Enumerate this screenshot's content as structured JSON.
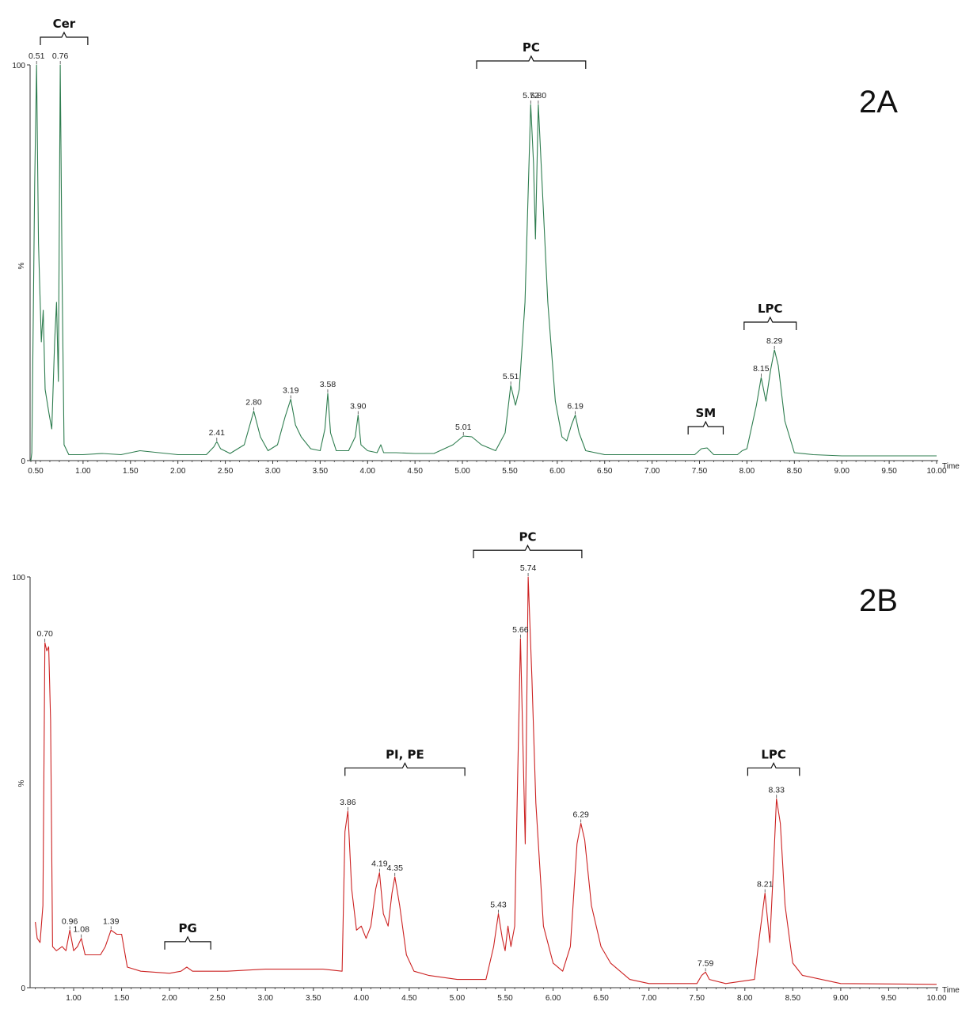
{
  "chart_data": [
    {
      "type": "line",
      "panel_label": "2A",
      "color": "#2e7d4f",
      "xlabel": "Time",
      "ylabel": "%",
      "xlim": [
        0.45,
        10.0
      ],
      "ylim": [
        0,
        100
      ],
      "y_ticks": [
        {
          "v": 0,
          "label": "0"
        },
        {
          "v": 100,
          "label": "100"
        }
      ],
      "x_ticks": [
        "0.50",
        "1.00",
        "1.50",
        "2.00",
        "2.50",
        "3.00",
        "3.50",
        "4.00",
        "4.50",
        "5.00",
        "5.50",
        "6.00",
        "6.50",
        "7.00",
        "7.50",
        "8.00",
        "8.50",
        "9.00",
        "9.50",
        "10.00"
      ],
      "trace": [
        [
          0.45,
          0
        ],
        [
          0.46,
          2
        ],
        [
          0.49,
          70
        ],
        [
          0.51,
          100
        ],
        [
          0.53,
          55
        ],
        [
          0.56,
          30
        ],
        [
          0.58,
          38
        ],
        [
          0.6,
          18
        ],
        [
          0.64,
          12
        ],
        [
          0.67,
          8
        ],
        [
          0.7,
          30
        ],
        [
          0.72,
          40
        ],
        [
          0.74,
          20
        ],
        [
          0.76,
          100
        ],
        [
          0.78,
          45
        ],
        [
          0.8,
          4
        ],
        [
          0.85,
          1.5
        ],
        [
          1.0,
          1.5
        ],
        [
          1.2,
          1.8
        ],
        [
          1.4,
          1.5
        ],
        [
          1.6,
          2.5
        ],
        [
          1.8,
          2
        ],
        [
          2.0,
          1.5
        ],
        [
          2.3,
          1.5
        ],
        [
          2.38,
          3.5
        ],
        [
          2.41,
          4.8
        ],
        [
          2.45,
          3
        ],
        [
          2.55,
          1.8
        ],
        [
          2.7,
          4
        ],
        [
          2.8,
          12.5
        ],
        [
          2.87,
          6
        ],
        [
          2.95,
          2.5
        ],
        [
          3.05,
          4
        ],
        [
          3.13,
          11
        ],
        [
          3.19,
          15.5
        ],
        [
          3.24,
          9
        ],
        [
          3.3,
          6
        ],
        [
          3.4,
          3
        ],
        [
          3.5,
          2.5
        ],
        [
          3.55,
          8
        ],
        [
          3.58,
          17
        ],
        [
          3.61,
          7
        ],
        [
          3.67,
          2.5
        ],
        [
          3.8,
          2.5
        ],
        [
          3.87,
          6
        ],
        [
          3.9,
          11.5
        ],
        [
          3.93,
          4
        ],
        [
          4.0,
          2.5
        ],
        [
          4.1,
          2
        ],
        [
          4.14,
          4
        ],
        [
          4.17,
          2
        ],
        [
          4.3,
          2
        ],
        [
          4.5,
          1.8
        ],
        [
          4.7,
          1.8
        ],
        [
          4.9,
          4
        ],
        [
          5.01,
          6.2
        ],
        [
          5.1,
          6
        ],
        [
          5.2,
          4
        ],
        [
          5.35,
          2.5
        ],
        [
          5.45,
          7
        ],
        [
          5.51,
          19
        ],
        [
          5.56,
          14
        ],
        [
          5.6,
          18
        ],
        [
          5.66,
          40
        ],
        [
          5.72,
          90
        ],
        [
          5.75,
          75
        ],
        [
          5.77,
          56
        ],
        [
          5.8,
          90
        ],
        [
          5.84,
          70
        ],
        [
          5.9,
          40
        ],
        [
          5.98,
          15
        ],
        [
          6.05,
          6
        ],
        [
          6.1,
          5
        ],
        [
          6.15,
          9
        ],
        [
          6.19,
          11.5
        ],
        [
          6.23,
          7
        ],
        [
          6.3,
          2.5
        ],
        [
          6.5,
          1.5
        ],
        [
          7.0,
          1.5
        ],
        [
          7.45,
          1.5
        ],
        [
          7.52,
          3
        ],
        [
          7.58,
          3.2
        ],
        [
          7.65,
          1.5
        ],
        [
          7.9,
          1.5
        ],
        [
          7.95,
          2.5
        ],
        [
          8.0,
          3
        ],
        [
          8.1,
          14
        ],
        [
          8.15,
          21
        ],
        [
          8.2,
          15
        ],
        [
          8.25,
          23
        ],
        [
          8.29,
          28
        ],
        [
          8.33,
          24
        ],
        [
          8.4,
          10
        ],
        [
          8.5,
          2
        ],
        [
          8.7,
          1.5
        ],
        [
          9.0,
          1.2
        ],
        [
          10.0,
          1.2
        ]
      ],
      "peaks": [
        {
          "x": 0.51,
          "y": 100,
          "label": "0.51"
        },
        {
          "x": 0.76,
          "y": 100,
          "label": "0.76"
        },
        {
          "x": 2.41,
          "y": 4.8,
          "label": "2.41"
        },
        {
          "x": 2.8,
          "y": 12.5,
          "label": "2.80"
        },
        {
          "x": 3.19,
          "y": 15.5,
          "label": "3.19"
        },
        {
          "x": 3.58,
          "y": 17,
          "label": "3.58"
        },
        {
          "x": 3.9,
          "y": 11.5,
          "label": "3.90"
        },
        {
          "x": 5.01,
          "y": 6.2,
          "label": "5.01"
        },
        {
          "x": 5.51,
          "y": 19,
          "label": "5.51"
        },
        {
          "x": 5.72,
          "y": 90,
          "label": "5.72"
        },
        {
          "x": 5.8,
          "y": 90,
          "label": "5.80"
        },
        {
          "x": 6.19,
          "y": 11.5,
          "label": "6.19"
        },
        {
          "x": 8.15,
          "y": 21,
          "label": "8.15"
        },
        {
          "x": 8.29,
          "y": 28,
          "label": "8.29"
        }
      ],
      "groups": [
        {
          "label": "Cer",
          "x1": 0.55,
          "x2": 1.05,
          "y": 107
        },
        {
          "label": "PC",
          "x1": 5.15,
          "x2": 6.3,
          "y": 101
        },
        {
          "label": "SM",
          "x1": 7.38,
          "x2": 7.75,
          "y": 8.6
        },
        {
          "label": "LPC",
          "x1": 7.97,
          "x2": 8.52,
          "y": 35
        }
      ]
    },
    {
      "type": "line",
      "panel_label": "2B",
      "color": "#cc2222",
      "xlabel": "Time",
      "ylabel": "%",
      "xlim": [
        0.6,
        10.0
      ],
      "ylim": [
        0,
        100
      ],
      "y_ticks": [
        {
          "v": 0,
          "label": "0"
        },
        {
          "v": 100,
          "label": "100"
        }
      ],
      "x_ticks": [
        "1.00",
        "1.50",
        "2.00",
        "2.50",
        "3.00",
        "3.50",
        "4.00",
        "4.50",
        "5.00",
        "5.50",
        "6.00",
        "6.50",
        "7.00",
        "7.50",
        "8.00",
        "8.50",
        "9.00",
        "9.50",
        "10.00"
      ],
      "trace": [
        [
          0.6,
          16
        ],
        [
          0.62,
          12
        ],
        [
          0.65,
          11
        ],
        [
          0.68,
          20
        ],
        [
          0.7,
          84
        ],
        [
          0.72,
          82
        ],
        [
          0.74,
          83
        ],
        [
          0.76,
          65
        ],
        [
          0.78,
          10
        ],
        [
          0.82,
          9
        ],
        [
          0.88,
          10
        ],
        [
          0.92,
          9
        ],
        [
          0.96,
          14
        ],
        [
          1.0,
          9
        ],
        [
          1.04,
          10
        ],
        [
          1.08,
          12
        ],
        [
          1.12,
          8
        ],
        [
          1.2,
          8
        ],
        [
          1.28,
          8
        ],
        [
          1.33,
          10
        ],
        [
          1.39,
          14
        ],
        [
          1.45,
          13
        ],
        [
          1.5,
          13
        ],
        [
          1.56,
          5
        ],
        [
          1.7,
          4
        ],
        [
          2.0,
          3.5
        ],
        [
          2.12,
          4
        ],
        [
          2.18,
          5
        ],
        [
          2.24,
          4
        ],
        [
          2.4,
          4
        ],
        [
          2.6,
          4
        ],
        [
          3.0,
          4.5
        ],
        [
          3.3,
          4.5
        ],
        [
          3.6,
          4.5
        ],
        [
          3.8,
          4
        ],
        [
          3.83,
          38
        ],
        [
          3.86,
          43
        ],
        [
          3.9,
          24
        ],
        [
          3.95,
          14
        ],
        [
          4.0,
          15
        ],
        [
          4.05,
          12
        ],
        [
          4.1,
          15
        ],
        [
          4.15,
          24
        ],
        [
          4.19,
          28
        ],
        [
          4.23,
          18
        ],
        [
          4.28,
          15
        ],
        [
          4.32,
          23
        ],
        [
          4.35,
          27
        ],
        [
          4.4,
          20
        ],
        [
          4.47,
          8
        ],
        [
          4.55,
          4
        ],
        [
          4.7,
          3
        ],
        [
          5.0,
          2
        ],
        [
          5.3,
          2
        ],
        [
          5.38,
          10
        ],
        [
          5.43,
          18
        ],
        [
          5.47,
          12
        ],
        [
          5.5,
          9
        ],
        [
          5.53,
          15
        ],
        [
          5.56,
          10
        ],
        [
          5.6,
          15
        ],
        [
          5.63,
          50
        ],
        [
          5.66,
          85
        ],
        [
          5.69,
          55
        ],
        [
          5.71,
          35
        ],
        [
          5.74,
          100
        ],
        [
          5.78,
          75
        ],
        [
          5.82,
          45
        ],
        [
          5.9,
          15
        ],
        [
          6.0,
          6
        ],
        [
          6.1,
          4
        ],
        [
          6.18,
          10
        ],
        [
          6.25,
          35
        ],
        [
          6.29,
          40
        ],
        [
          6.33,
          36
        ],
        [
          6.4,
          20
        ],
        [
          6.5,
          10
        ],
        [
          6.6,
          6
        ],
        [
          6.8,
          2
        ],
        [
          7.0,
          1
        ],
        [
          7.5,
          1
        ],
        [
          7.55,
          3
        ],
        [
          7.59,
          3.8
        ],
        [
          7.63,
          2
        ],
        [
          7.8,
          1
        ],
        [
          8.1,
          2
        ],
        [
          8.15,
          12
        ],
        [
          8.21,
          23
        ],
        [
          8.26,
          11
        ],
        [
          8.3,
          30
        ],
        [
          8.33,
          46
        ],
        [
          8.37,
          40
        ],
        [
          8.42,
          20
        ],
        [
          8.5,
          6
        ],
        [
          8.6,
          3
        ],
        [
          9.0,
          1
        ],
        [
          10.0,
          0.8
        ]
      ],
      "peaks": [
        {
          "x": 0.7,
          "y": 84,
          "label": "0.70"
        },
        {
          "x": 0.96,
          "y": 14,
          "label": "0.96"
        },
        {
          "x": 1.08,
          "y": 12,
          "label": "1.08"
        },
        {
          "x": 1.39,
          "y": 14,
          "label": "1.39"
        },
        {
          "x": 3.86,
          "y": 43,
          "label": "3.86"
        },
        {
          "x": 4.19,
          "y": 28,
          "label": "4.19"
        },
        {
          "x": 4.35,
          "y": 27,
          "label": "4.35"
        },
        {
          "x": 5.43,
          "y": 18,
          "label": "5.43"
        },
        {
          "x": 5.66,
          "y": 85,
          "label": "5.66"
        },
        {
          "x": 5.74,
          "y": 100,
          "label": "5.74"
        },
        {
          "x": 6.29,
          "y": 40,
          "label": "6.29"
        },
        {
          "x": 7.59,
          "y": 3.8,
          "label": "7.59"
        },
        {
          "x": 8.21,
          "y": 23,
          "label": "8.21"
        },
        {
          "x": 8.33,
          "y": 46,
          "label": "8.33"
        }
      ],
      "groups": [
        {
          "label": "PG",
          "x1": 1.95,
          "x2": 2.43,
          "y": 11.2
        },
        {
          "label": "PI, PE",
          "x1": 3.83,
          "x2": 5.08,
          "y": 53.5
        },
        {
          "label": "PC",
          "x1": 5.17,
          "x2": 6.3,
          "y": 106.5
        },
        {
          "label": "LPC",
          "x1": 8.03,
          "x2": 8.57,
          "y": 53.5
        }
      ]
    }
  ]
}
